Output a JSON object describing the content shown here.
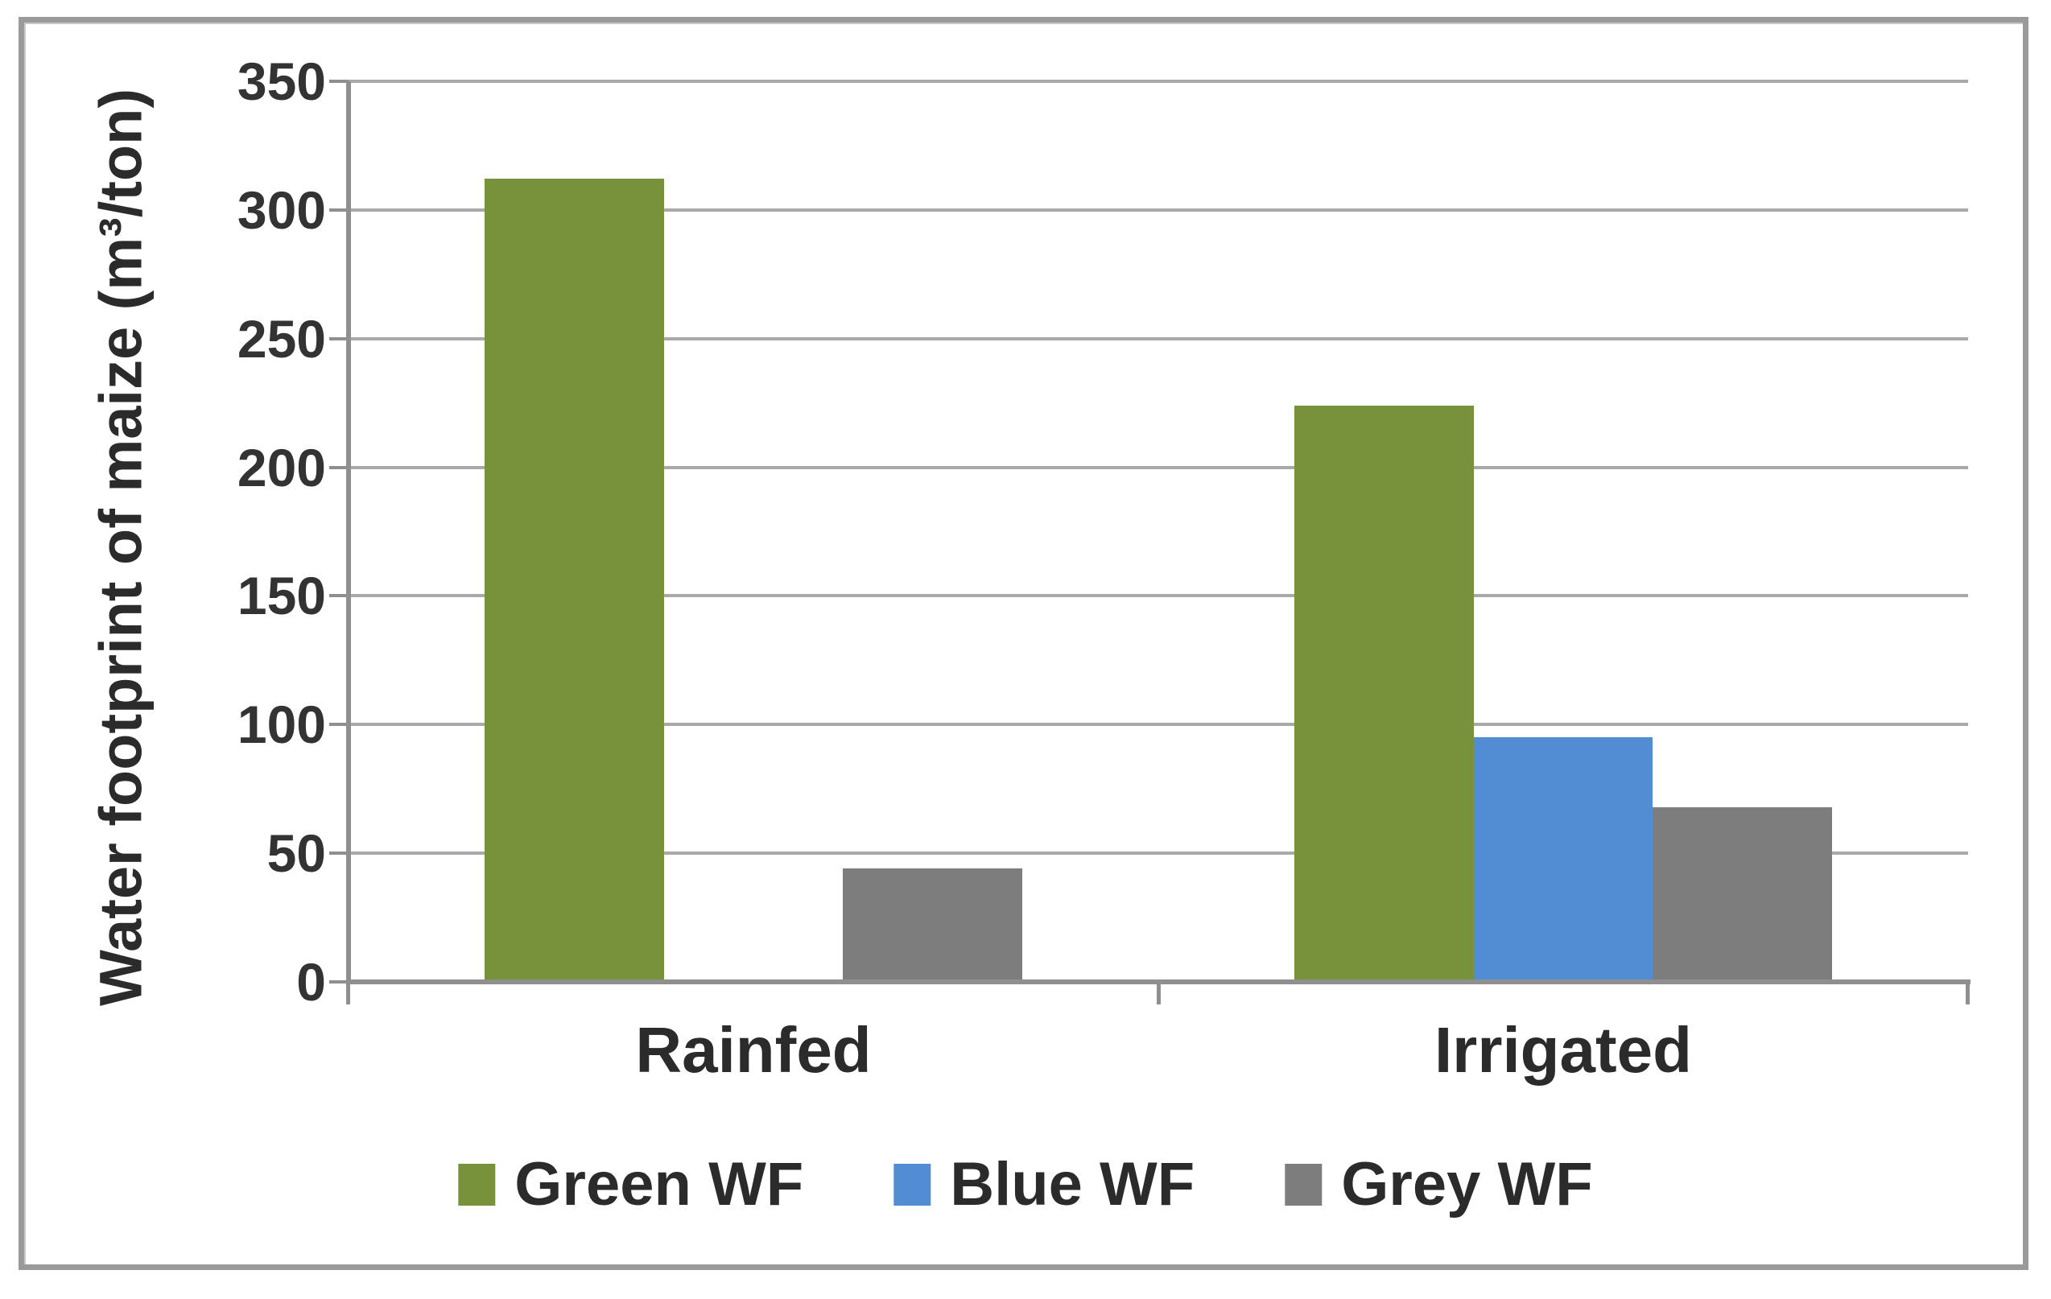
{
  "chart_data": {
    "type": "bar",
    "title": "",
    "xlabel": "",
    "ylabel": "Water footprint of maize (m³/ton)",
    "categories": [
      "Rainfed",
      "Irrigated"
    ],
    "series": [
      {
        "name": "Green WF",
        "color": "#78923C",
        "values": [
          312,
          224
        ]
      },
      {
        "name": "Blue WF",
        "color": "#528CD3",
        "values": [
          0,
          95
        ]
      },
      {
        "name": "Grey WF",
        "color": "#7D7D7D",
        "values": [
          44,
          68
        ]
      }
    ],
    "ylim": [
      0,
      350
    ],
    "yticks": [
      0,
      50,
      100,
      150,
      200,
      250,
      300,
      350
    ],
    "grid": true,
    "legend_position": "bottom",
    "axis_color": "#8f8f8f",
    "gridline_color": "#a9a9a9",
    "text_color": "#2b2b2b",
    "frame_border_color": "#9a9a9a"
  }
}
